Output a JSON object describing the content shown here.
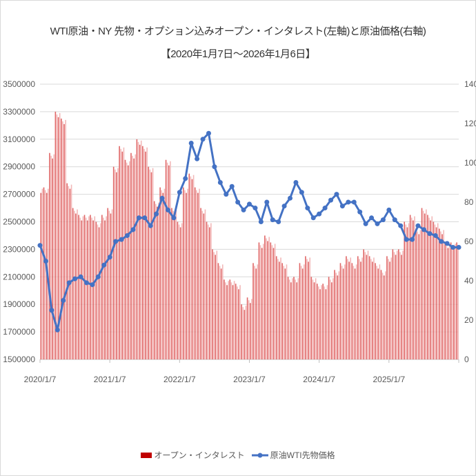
{
  "chart_data": {
    "type": "bar+line",
    "title": "WTI原油・NY 先物・オプション込みオープン・インタレスト(左軸)と原油価格(右軸)",
    "subtitle": "【2020年1月7日～2026年1月6日】",
    "x_tick_labels": [
      "2020/1/7",
      "2021/1/7",
      "2022/1/7",
      "2023/1/7",
      "2024/1/7",
      "2025/1/7"
    ],
    "x_range": [
      "2020/1/7",
      "2026/1/6"
    ],
    "y_left": {
      "min": 1500000,
      "max": 3500000,
      "step": 200000,
      "ticks": [
        "1500000",
        "1700000",
        "1900000",
        "2100000",
        "2300000",
        "2500000",
        "2700000",
        "2900000",
        "3100000",
        "3300000",
        "3500000"
      ]
    },
    "y_right": {
      "min": 0,
      "max": 140,
      "step": 20,
      "ticks": [
        "0",
        "20",
        "40",
        "60",
        "80",
        "100",
        "120",
        "140"
      ]
    },
    "grid": true,
    "legend_position": "bottom",
    "x_months": [
      "2020-01",
      "2020-02",
      "2020-03",
      "2020-04",
      "2020-05",
      "2020-06",
      "2020-07",
      "2020-08",
      "2020-09",
      "2020-10",
      "2020-11",
      "2020-12",
      "2021-01",
      "2021-02",
      "2021-03",
      "2021-04",
      "2021-05",
      "2021-06",
      "2021-07",
      "2021-08",
      "2021-09",
      "2021-10",
      "2021-11",
      "2021-12",
      "2022-01",
      "2022-02",
      "2022-03",
      "2022-04",
      "2022-05",
      "2022-06",
      "2022-07",
      "2022-08",
      "2022-09",
      "2022-10",
      "2022-11",
      "2022-12",
      "2023-01",
      "2023-02",
      "2023-03",
      "2023-04",
      "2023-05",
      "2023-06",
      "2023-07",
      "2023-08",
      "2023-09",
      "2023-10",
      "2023-11",
      "2023-12",
      "2024-01",
      "2024-02",
      "2024-03",
      "2024-04",
      "2024-05",
      "2024-06",
      "2024-07",
      "2024-08",
      "2024-09",
      "2024-10",
      "2024-11",
      "2024-12",
      "2025-01",
      "2025-02",
      "2025-03",
      "2025-04",
      "2025-05",
      "2025-06",
      "2025-07",
      "2025-08",
      "2025-09",
      "2025-10",
      "2025-11",
      "2025-12",
      "2026-01"
    ],
    "series": [
      {
        "name": "オープン・インタレスト",
        "type": "bar",
        "axis": "left",
        "color": "#c00000",
        "values": [
          2750000,
          2750000,
          3000000,
          3300000,
          3250000,
          2780000,
          2600000,
          2550000,
          2550000,
          2550000,
          2500000,
          2550000,
          2600000,
          2900000,
          3050000,
          2950000,
          3000000,
          3100000,
          3050000,
          2900000,
          2650000,
          2750000,
          2950000,
          2600000,
          2500000,
          2750000,
          2850000,
          2750000,
          2600000,
          2500000,
          2300000,
          2200000,
          2080000,
          2080000,
          2050000,
          1900000,
          1950000,
          2200000,
          2350000,
          2400000,
          2350000,
          2250000,
          2200000,
          2100000,
          2100000,
          2200000,
          2250000,
          2100000,
          2050000,
          2050000,
          2100000,
          2150000,
          2200000,
          2250000,
          2200000,
          2250000,
          2300000,
          2250000,
          2200000,
          2150000,
          2250000,
          2300000,
          2300000,
          2500000,
          2550000,
          2450000,
          2600000,
          2550000,
          2500000,
          2450000,
          2350000,
          2350000,
          2350000
        ]
      },
      {
        "name": "原油WTI先物価格",
        "type": "line",
        "axis": "right",
        "color": "#4472c4",
        "values": [
          58,
          50,
          25,
          15,
          30,
          39,
          41,
          42,
          39,
          38,
          42,
          48,
          52,
          60,
          61,
          63,
          66,
          72,
          72,
          68,
          74,
          82,
          76,
          72,
          85,
          92,
          110,
          102,
          112,
          115,
          98,
          90,
          84,
          88,
          80,
          76,
          79,
          77,
          70,
          80,
          71,
          70,
          78,
          82,
          90,
          85,
          77,
          72,
          74,
          77,
          81,
          84,
          78,
          80,
          80,
          75,
          69,
          72,
          69,
          71,
          76,
          71,
          68,
          61,
          61,
          68,
          66,
          64,
          63,
          60,
          59,
          57,
          57
        ]
      }
    ]
  }
}
